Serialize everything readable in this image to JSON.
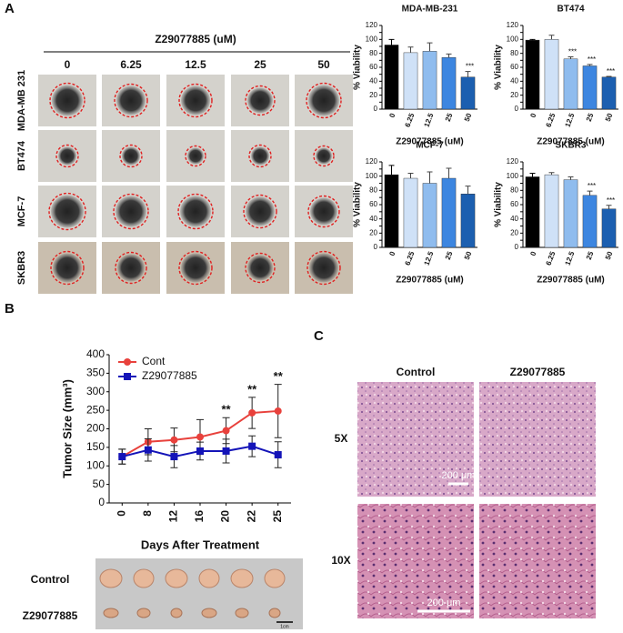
{
  "panels": {
    "a": "A",
    "b": "B",
    "c": "C"
  },
  "spheroid": {
    "compound": "Z29077885 (uM)",
    "doses": [
      "0",
      "6.25",
      "12.5",
      "25",
      "50"
    ],
    "lines": [
      "MDA-MB 231",
      "BT474",
      "MCF-7",
      "SKBR3"
    ]
  },
  "chart_data": [
    {
      "type": "bar",
      "title": "MDA-MB-231",
      "x_label": "Z29077885  (uM)",
      "y_label": "% Viability",
      "categories": [
        "0",
        "6.25",
        "12.5",
        "25",
        "50"
      ],
      "values": [
        92,
        81,
        83,
        74,
        46
      ],
      "errors": [
        8,
        8,
        12,
        5,
        8
      ],
      "colors": [
        "#000000",
        "#cfe1f7",
        "#8fbcee",
        "#3d86e0",
        "#1c5fb0"
      ],
      "significance": [
        null,
        null,
        null,
        null,
        "***"
      ],
      "ylim": [
        0,
        120
      ],
      "yticks": [
        0,
        10,
        20,
        30,
        40,
        50,
        60,
        70,
        80,
        90,
        100,
        110,
        120
      ]
    },
    {
      "type": "bar",
      "title": "BT474",
      "x_label": "Z29077885  (uM)",
      "y_label": "% Viability",
      "categories": [
        "0",
        "6.25",
        "12.5",
        "25",
        "50"
      ],
      "values": [
        99,
        100,
        72,
        62,
        46
      ],
      "errors": [
        1,
        6,
        3,
        2,
        1
      ],
      "colors": [
        "#000000",
        "#cfe1f7",
        "#8fbcee",
        "#3d86e0",
        "#1c5fb0"
      ],
      "significance": [
        null,
        null,
        "***",
        "***",
        "***"
      ],
      "ylim": [
        0,
        120
      ],
      "yticks": [
        0,
        10,
        20,
        30,
        40,
        50,
        60,
        70,
        80,
        90,
        100,
        110,
        120
      ]
    },
    {
      "type": "bar",
      "title": "MCF-7",
      "x_label": "Z29077885  (uM)",
      "y_label": "% Viability",
      "categories": [
        "0",
        "6.25",
        "12.5",
        "25",
        "50"
      ],
      "values": [
        102,
        97,
        90,
        97,
        75
      ],
      "errors": [
        13,
        7,
        16,
        14,
        11
      ],
      "colors": [
        "#000000",
        "#cfe1f7",
        "#8fbcee",
        "#3d86e0",
        "#1c5fb0"
      ],
      "significance": [
        null,
        null,
        null,
        null,
        null
      ],
      "ylim": [
        0,
        120
      ],
      "yticks": [
        0,
        10,
        20,
        30,
        40,
        50,
        60,
        70,
        80,
        90,
        100,
        110,
        120
      ]
    },
    {
      "type": "bar",
      "title": "SKBR3",
      "x_label": "Z29077885  (uM)",
      "y_label": "% Viability",
      "categories": [
        "0",
        "6.25",
        "12.5",
        "25",
        "50"
      ],
      "values": [
        99,
        102,
        95,
        73,
        54
      ],
      "errors": [
        5,
        3,
        4,
        6,
        5
      ],
      "colors": [
        "#000000",
        "#cfe1f7",
        "#8fbcee",
        "#3d86e0",
        "#1c5fb0"
      ],
      "significance": [
        null,
        null,
        null,
        "***",
        "***"
      ],
      "ylim": [
        0,
        120
      ],
      "yticks": [
        0,
        10,
        20,
        30,
        40,
        50,
        60,
        70,
        80,
        90,
        100,
        110,
        120
      ]
    },
    {
      "type": "line",
      "x_label": "Days After Treatment",
      "y_label": "Tumor Size (mm³)",
      "categories": [
        "0",
        "8",
        "12",
        "16",
        "20",
        "22",
        "25"
      ],
      "series": [
        {
          "name": "Cont",
          "color": "#e8413c",
          "marker": "circle",
          "values": [
            125,
            165,
            170,
            178,
            195,
            243,
            248
          ],
          "errors": [
            20,
            35,
            32,
            47,
            35,
            42,
            72
          ]
        },
        {
          "name": "Z29077885",
          "color": "#1414b8",
          "marker": "square",
          "values": [
            125,
            143,
            125,
            140,
            140,
            153,
            130
          ],
          "errors": [
            20,
            30,
            30,
            24,
            32,
            28,
            35
          ]
        }
      ],
      "significance": [
        null,
        null,
        null,
        null,
        "**",
        "**",
        "**"
      ],
      "legend": "upper left",
      "ylim": [
        0,
        400
      ],
      "yticks": [
        0,
        50,
        100,
        150,
        200,
        250,
        300,
        350,
        400
      ]
    }
  ],
  "tumor_photo": {
    "rows": [
      "Control",
      "Z29077885"
    ],
    "scale": "1cm"
  },
  "histology": {
    "columns": [
      "Control",
      "Z29077885"
    ],
    "rows": [
      "5X",
      "10X"
    ],
    "scale_bar": "200 μm"
  }
}
